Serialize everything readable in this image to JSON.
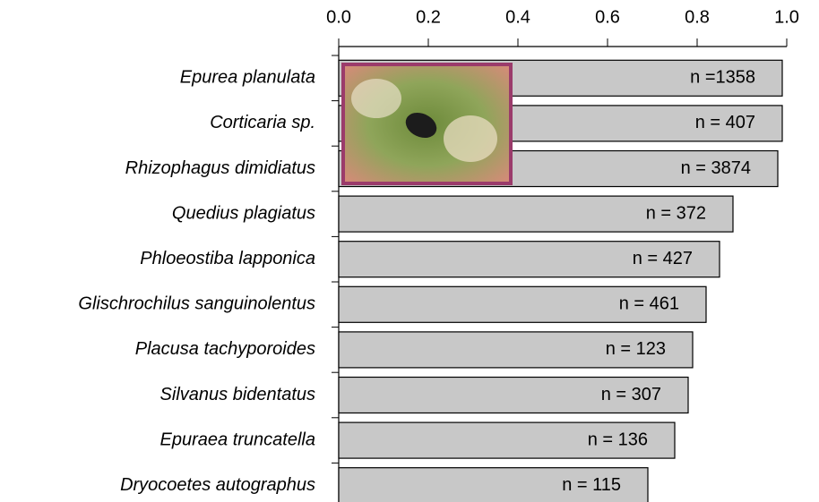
{
  "chart_data": {
    "type": "hbar",
    "categories": [
      "Epurea planulata",
      "Corticaria sp.",
      "Rhizophagus dimidiatus",
      "Quedius plagiatus",
      "Phloeostiba lapponica",
      "Glischrochilus sanguinolentus",
      "Placusa tachyporoides",
      "Silvanus bidentatus",
      "Epuraea truncatella",
      "Dryocoetes autographus"
    ],
    "values": [
      0.99,
      0.99,
      0.98,
      0.88,
      0.85,
      0.82,
      0.79,
      0.78,
      0.75,
      0.69
    ],
    "sample_size_labels": [
      "n =1358",
      "n = 407",
      "n = 3874",
      "n = 372",
      "n = 427",
      "n = 461",
      "n = 123",
      "n = 307",
      "n = 136",
      "n = 115"
    ],
    "color": "#c8c8c8",
    "xlim": [
      0,
      1
    ],
    "xticks": [
      {
        "value": 0,
        "label": "0.0"
      },
      0.2,
      0.4,
      0.6,
      0.8,
      {
        "value": 1,
        "label": "1.0"
      }
    ],
    "grid": false
  }
}
